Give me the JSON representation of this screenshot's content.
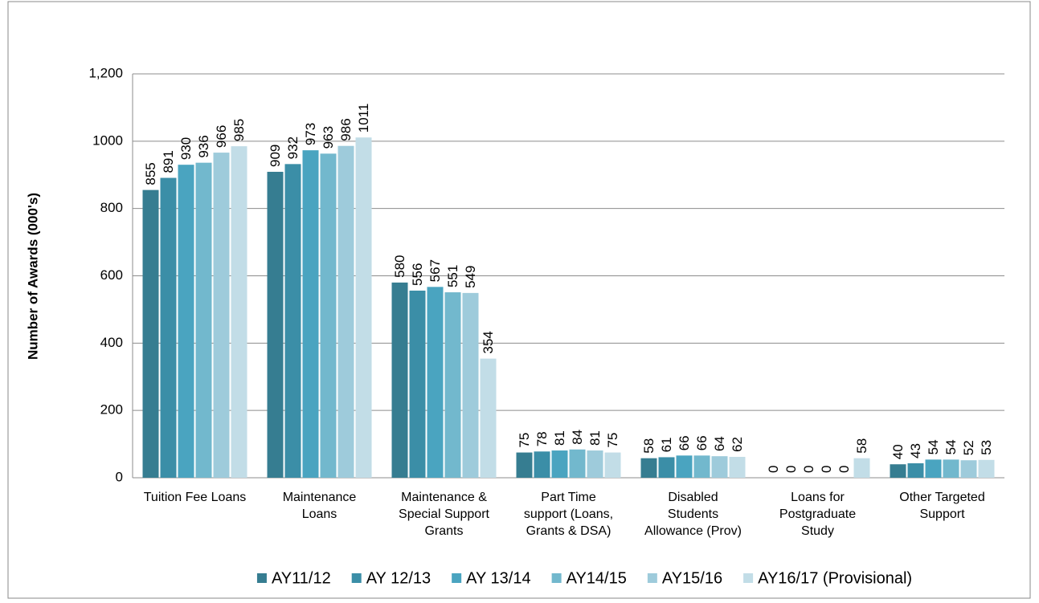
{
  "chart_data": {
    "type": "bar",
    "y_label": "Number of Awards (000's)",
    "categories": [
      "Tuition Fee Loans",
      "Maintenance\nLoans",
      "Maintenance &\nSpecial Support\nGrants",
      "Part Time\nsupport (Loans,\nGrants & DSA)",
      "Disabled\nStudents\nAllowance (Prov)",
      "Loans for\nPostgraduate\nStudy",
      "Other Targeted\nSupport"
    ],
    "series": [
      {
        "name": "AY11/12",
        "color": "#367d91",
        "values": [
          855,
          909,
          580,
          75,
          58,
          0,
          40
        ]
      },
      {
        "name": "AY 12/13",
        "color": "#3b8ea7",
        "values": [
          891,
          932,
          556,
          78,
          61,
          0,
          43
        ]
      },
      {
        "name": "AY 13/14",
        "color": "#4aa4c0",
        "values": [
          930,
          973,
          567,
          81,
          66,
          0,
          54
        ]
      },
      {
        "name": "AY14/15",
        "color": "#72b8cd",
        "values": [
          936,
          963,
          551,
          84,
          66,
          0,
          54
        ]
      },
      {
        "name": "AY15/16",
        "color": "#9ecbdb",
        "values": [
          966,
          986,
          549,
          81,
          64,
          0,
          52
        ]
      },
      {
        "name": "AY16/17 (Provisional)",
        "color": "#c2dde7",
        "values": [
          985,
          1011,
          354,
          75,
          62,
          58,
          53
        ]
      }
    ],
    "ylim": [
      0,
      1200
    ],
    "yticks": [
      0,
      200,
      400,
      600,
      800,
      1000,
      {
        "value": 1200,
        "label": "1,200"
      }
    ],
    "grid": true,
    "legend": "bottom"
  }
}
